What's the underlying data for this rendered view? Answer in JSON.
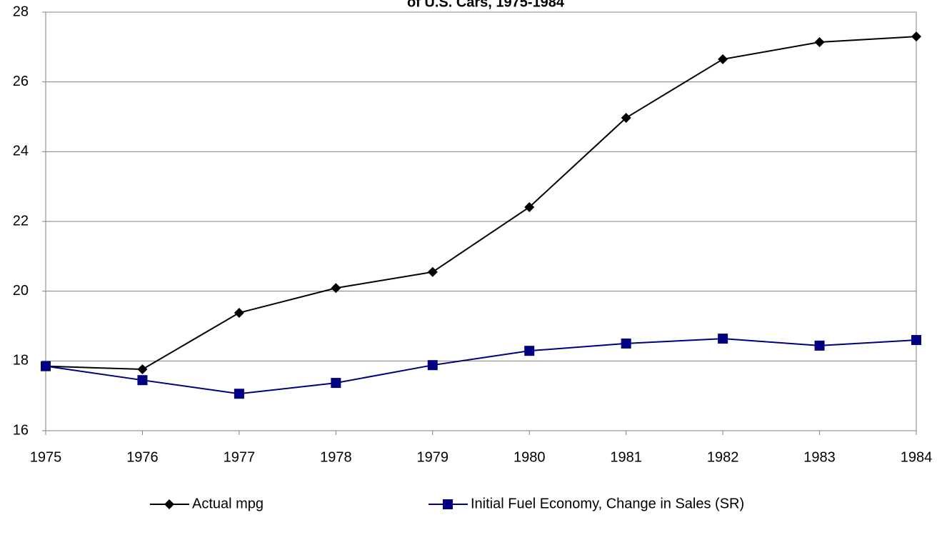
{
  "chart_data": {
    "type": "line",
    "title": "of U.S. Cars, 1975-1984",
    "x": [
      1975,
      1976,
      1977,
      1978,
      1979,
      1980,
      1981,
      1982,
      1983,
      1984
    ],
    "series": [
      {
        "name": "Actual mpg",
        "color": "#000000",
        "marker": "diamond",
        "values": [
          17.85,
          17.76,
          19.38,
          20.09,
          20.55,
          22.41,
          24.97,
          26.65,
          27.14,
          27.3
        ]
      },
      {
        "name": "Initial Fuel Economy, Change in Sales (SR)",
        "color": "#000080",
        "marker": "square",
        "values": [
          17.85,
          17.45,
          17.06,
          17.37,
          17.88,
          18.29,
          18.5,
          18.64,
          18.44,
          18.6
        ]
      }
    ],
    "xlim": [
      1975,
      1984
    ],
    "xticks": [
      1975,
      1976,
      1977,
      1978,
      1979,
      1980,
      1981,
      1982,
      1983,
      1984
    ],
    "ylim": [
      16,
      28
    ],
    "yticks": [
      16,
      18,
      20,
      22,
      24,
      26,
      28
    ],
    "grid": true,
    "legend": "bottom"
  }
}
